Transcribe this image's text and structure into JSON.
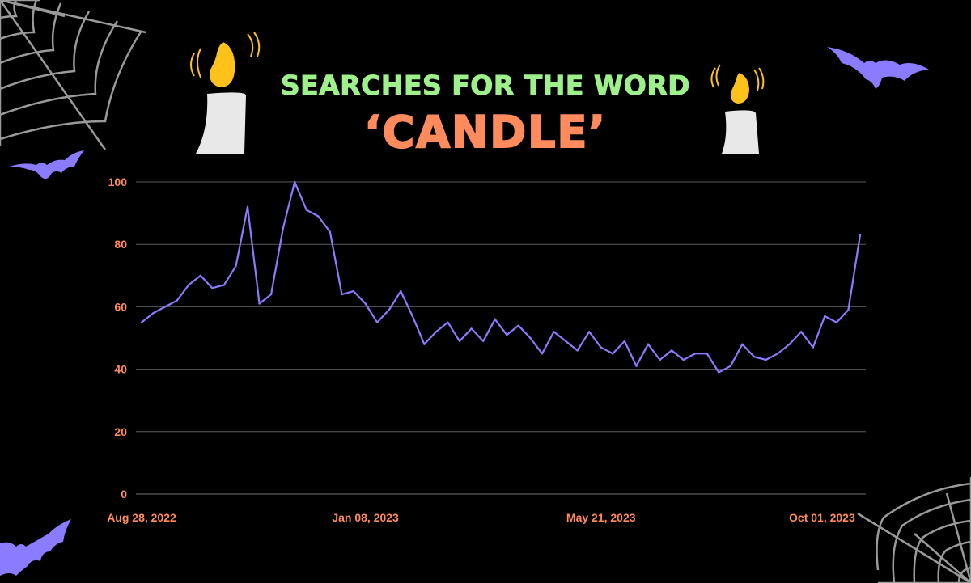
{
  "title": {
    "line1": "SEARCHES FOR THE WORD",
    "line2": "‘CANDLE’"
  },
  "colors": {
    "background": "#000000",
    "title_line1": "#9ef08a",
    "title_line2": "#ff8a5c",
    "tick_labels": "#ff8a5c",
    "series_line": "#8b7bff",
    "gridlines": "#5a5a5a",
    "bat": "#8b7bff",
    "web": "#9a9a9a",
    "candle_wax": "#e8e8e8",
    "candle_flame": "#ffc21a"
  },
  "decorations": {
    "icons": [
      "spider-web-icon",
      "bat-icon",
      "candle-icon"
    ]
  },
  "chart_data": {
    "type": "line",
    "title": "SEARCHES FOR THE WORD ‘CANDLE’",
    "xlabel": "",
    "ylabel": "",
    "ylim": [
      0,
      100
    ],
    "yticks": [
      0,
      20,
      40,
      60,
      80,
      100
    ],
    "grid": true,
    "x_tick_labels": [
      "Aug 28, 2022",
      "Jan 08, 2023",
      "May 21, 2023",
      "Oct 01, 2023"
    ],
    "x_tick_indices": [
      0,
      19,
      39,
      59
    ],
    "series": [
      {
        "values": [
          55,
          58,
          60,
          62,
          67,
          70,
          66,
          67,
          73,
          92,
          61,
          64,
          85,
          100,
          91,
          89,
          84,
          64,
          65,
          61,
          55,
          59,
          65,
          57,
          48,
          52,
          55,
          49,
          53,
          49,
          56,
          51,
          54,
          50,
          45,
          52,
          49,
          46,
          52,
          47,
          45,
          49,
          41,
          48,
          43,
          46,
          43,
          45,
          45,
          39,
          41,
          48,
          44,
          43,
          45,
          48,
          52,
          47,
          57,
          55,
          59,
          83
        ]
      }
    ]
  }
}
